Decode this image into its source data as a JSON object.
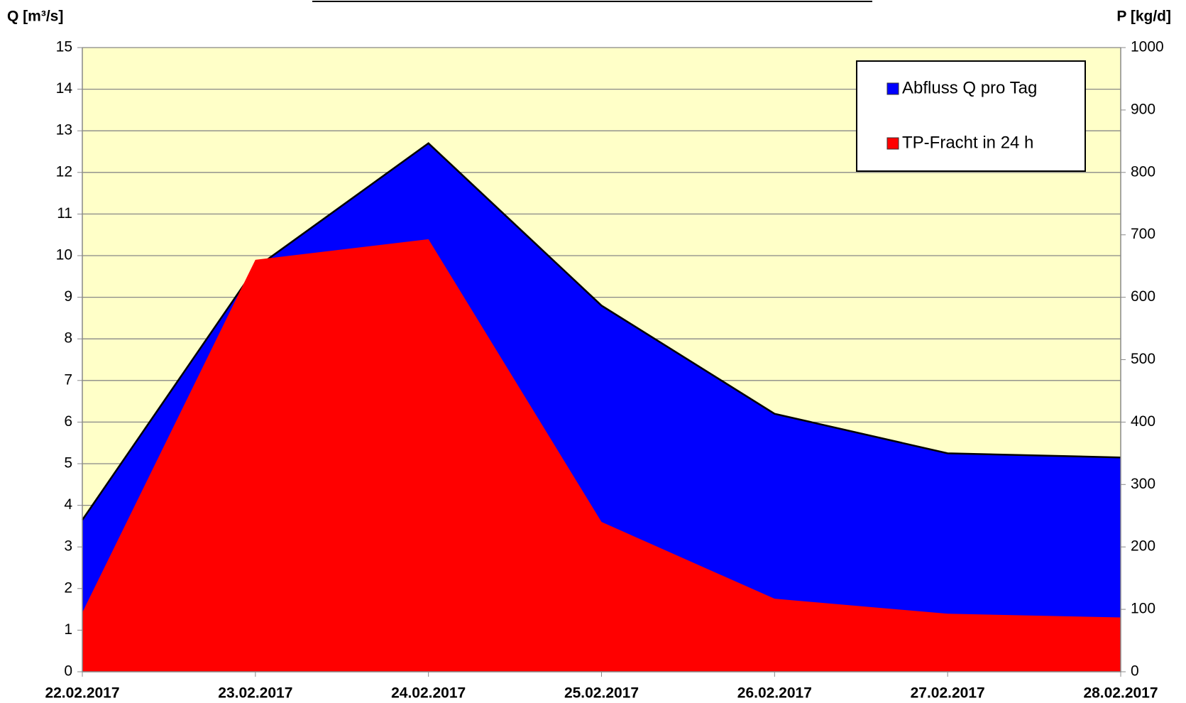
{
  "chart_data": {
    "type": "area",
    "y_label": "Q [m³/s]",
    "y2_label": "P [kg/d]",
    "categories": [
      "22.02.2017",
      "23.02.2017",
      "24.02.2017",
      "25.02.2017",
      "26.02.2017",
      "27.02.2017",
      "28.02.2017"
    ],
    "series": [
      {
        "name": "Abfluss Q pro Tag",
        "color": "#0000ff",
        "values": [
          3.65,
          9.7,
          12.7,
          8.8,
          6.2,
          5.25,
          5.15
        ]
      },
      {
        "name": "TP-Fracht in 24 h",
        "color": "#ff0000",
        "axis": "y2",
        "values": [
          95,
          660,
          693,
          240,
          117,
          93,
          87
        ]
      }
    ],
    "ylim": [
      0,
      15
    ],
    "yticks": [
      0,
      1,
      2,
      3,
      4,
      5,
      6,
      7,
      8,
      9,
      10,
      11,
      12,
      13,
      14,
      15
    ],
    "y2lim": [
      0,
      1000
    ],
    "y2ticks": [
      0,
      100,
      200,
      300,
      400,
      500,
      600,
      700,
      800,
      900,
      1000
    ],
    "grid": true,
    "legend": "upper right",
    "background": "#ffffc8"
  }
}
